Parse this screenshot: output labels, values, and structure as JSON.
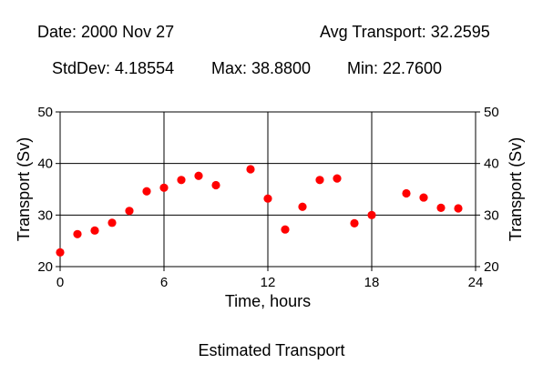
{
  "header": {
    "date": "Date: 2000 Nov 27",
    "avg": "Avg Transport: 32.2595",
    "stddev": "StdDev: 4.18554",
    "max": "Max: 38.8800",
    "min": "Min: 22.7600"
  },
  "caption": "Estimated Transport",
  "chart_data": {
    "type": "scatter",
    "xlabel": "Time, hours",
    "ylabel": "Transport (Sv)",
    "ylabel_right": "Transport (Sv)",
    "xlim": [
      0,
      24
    ],
    "ylim": [
      20,
      50
    ],
    "x_ticks": [
      0,
      6,
      12,
      18,
      24
    ],
    "y_ticks": [
      20,
      30,
      40,
      50
    ],
    "grid": true,
    "marker_color": "#ff0000",
    "points": [
      {
        "x": 0,
        "y": 22.76
      },
      {
        "x": 1,
        "y": 26.3
      },
      {
        "x": 2,
        "y": 27.0
      },
      {
        "x": 3,
        "y": 28.5
      },
      {
        "x": 4,
        "y": 30.8
      },
      {
        "x": 5,
        "y": 34.6
      },
      {
        "x": 6,
        "y": 35.3
      },
      {
        "x": 7,
        "y": 36.8
      },
      {
        "x": 8,
        "y": 37.6
      },
      {
        "x": 9,
        "y": 35.8
      },
      {
        "x": 11,
        "y": 38.88
      },
      {
        "x": 12,
        "y": 33.2
      },
      {
        "x": 13,
        "y": 27.2
      },
      {
        "x": 14,
        "y": 31.6
      },
      {
        "x": 15,
        "y": 36.8
      },
      {
        "x": 16,
        "y": 37.1
      },
      {
        "x": 17,
        "y": 28.4
      },
      {
        "x": 18,
        "y": 30.0
      },
      {
        "x": 20,
        "y": 34.2
      },
      {
        "x": 21,
        "y": 33.4
      },
      {
        "x": 22,
        "y": 31.4
      },
      {
        "x": 23,
        "y": 31.3
      }
    ]
  }
}
